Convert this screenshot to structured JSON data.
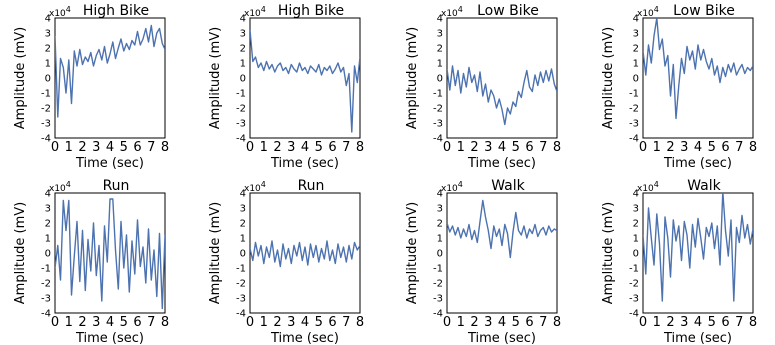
{
  "chart_data": [
    {
      "type": "line",
      "title": "High Bike",
      "xlabel": "Time (sec)",
      "ylabel": "Amplitude (mV)",
      "scale_label": "x10",
      "scale_exp": "4",
      "xlim": [
        0,
        8
      ],
      "ylim": [
        -4,
        4
      ],
      "xticks": [
        0,
        1,
        2,
        3,
        4,
        5,
        6,
        7,
        8
      ],
      "yticks": [
        4,
        3,
        2,
        1,
        0,
        -1,
        -2,
        -3,
        -4
      ],
      "color": "#4c72b0",
      "series": [
        {
          "x": [
            0,
            0.2,
            0.4,
            0.6,
            0.8,
            1.0,
            1.2,
            1.4,
            1.6,
            1.8,
            2.0,
            2.2,
            2.4,
            2.6,
            2.8,
            3.0,
            3.2,
            3.4,
            3.6,
            3.8,
            4.0,
            4.2,
            4.4,
            4.6,
            4.8,
            5.0,
            5.2,
            5.4,
            5.6,
            5.8,
            6.0,
            6.2,
            6.4,
            6.6,
            6.8,
            7.0,
            7.2,
            7.4,
            7.6,
            7.8,
            8.0
          ],
          "y": [
            2.8,
            -2.6,
            1.3,
            0.7,
            -1.0,
            1.2,
            -1.7,
            1.8,
            0.8,
            1.9,
            0.9,
            1.4,
            1.1,
            1.7,
            0.8,
            1.5,
            1.9,
            1.2,
            2.1,
            1.0,
            1.6,
            2.4,
            1.3,
            2.0,
            2.6,
            1.8,
            2.3,
            1.9,
            2.5,
            2.2,
            3.1,
            2.2,
            2.6,
            3.3,
            2.4,
            3.5,
            2.1,
            3.0,
            3.3,
            2.3,
            1.9
          ]
        }
      ]
    },
    {
      "type": "line",
      "title": "High Bike",
      "xlabel": "Time (sec)",
      "ylabel": "Amplitude (mV)",
      "scale_label": "x10",
      "scale_exp": "4",
      "xlim": [
        0,
        8
      ],
      "ylim": [
        -4,
        4
      ],
      "xticks": [
        0,
        1,
        2,
        3,
        4,
        5,
        6,
        7,
        8
      ],
      "yticks": [
        4,
        3,
        2,
        1,
        0,
        -1,
        -2,
        -3,
        -4
      ],
      "color": "#4c72b0",
      "series": [
        {
          "x": [
            0,
            0.2,
            0.4,
            0.6,
            0.8,
            1.0,
            1.2,
            1.4,
            1.6,
            1.8,
            2.0,
            2.2,
            2.4,
            2.6,
            2.8,
            3.0,
            3.2,
            3.4,
            3.6,
            3.8,
            4.0,
            4.2,
            4.4,
            4.6,
            4.8,
            5.0,
            5.2,
            5.4,
            5.6,
            5.8,
            6.0,
            6.2,
            6.4,
            6.6,
            6.8,
            7.0,
            7.2,
            7.4,
            7.6,
            7.8,
            8.0
          ],
          "y": [
            3.2,
            1.1,
            1.4,
            0.7,
            1.0,
            0.5,
            1.1,
            0.6,
            0.9,
            0.4,
            0.8,
            1.0,
            0.5,
            0.7,
            0.3,
            0.9,
            0.6,
            0.4,
            1.0,
            0.5,
            0.7,
            0.3,
            0.8,
            0.6,
            0.4,
            0.9,
            0.2,
            0.7,
            0.5,
            0.8,
            0.3,
            0.6,
            1.0,
            0.4,
            0.7,
            -0.5,
            0.3,
            -3.6,
            0.8,
            -0.3,
            1.4
          ]
        }
      ]
    },
    {
      "type": "line",
      "title": "Low Bike",
      "xlabel": "Time (sec)",
      "ylabel": "Amplitude (mV)",
      "scale_label": "x10",
      "scale_exp": "4",
      "xlim": [
        0,
        8
      ],
      "ylim": [
        -4,
        4
      ],
      "xticks": [
        0,
        1,
        2,
        3,
        4,
        5,
        6,
        7,
        8
      ],
      "yticks": [
        4,
        3,
        2,
        1,
        0,
        -1,
        -2,
        -3,
        -4
      ],
      "color": "#4c72b0",
      "series": [
        {
          "x": [
            0,
            0.2,
            0.4,
            0.6,
            0.8,
            1.0,
            1.2,
            1.4,
            1.6,
            1.8,
            2.0,
            2.2,
            2.4,
            2.6,
            2.8,
            3.0,
            3.2,
            3.4,
            3.6,
            3.8,
            4.0,
            4.2,
            4.4,
            4.6,
            4.8,
            5.0,
            5.2,
            5.4,
            5.6,
            5.8,
            6.0,
            6.2,
            6.4,
            6.6,
            6.8,
            7.0,
            7.2,
            7.4,
            7.6,
            7.8,
            8.0
          ],
          "y": [
            0.6,
            -0.8,
            0.8,
            -0.5,
            0.5,
            -1.0,
            0.3,
            -0.6,
            0.7,
            -0.3,
            0.2,
            -0.9,
            0.4,
            -1.2,
            -0.4,
            -1.6,
            -0.8,
            -1.2,
            -2.0,
            -1.4,
            -2.1,
            -3.1,
            -2.0,
            -2.4,
            -1.6,
            -1.9,
            -0.9,
            -1.3,
            -0.3,
            0.5,
            -0.6,
            -0.9,
            0.2,
            -0.5,
            0.4,
            -0.3,
            0.5,
            -0.2,
            0.6,
            -0.4,
            -0.9
          ]
        }
      ]
    },
    {
      "type": "line",
      "title": "Low Bike",
      "xlabel": "Time (sec)",
      "ylabel": "Amplitude (mV)",
      "scale_label": "x10",
      "scale_exp": "4",
      "xlim": [
        0,
        8
      ],
      "ylim": [
        -4,
        4
      ],
      "xticks": [
        0,
        1,
        2,
        3,
        4,
        5,
        6,
        7,
        8
      ],
      "yticks": [
        4,
        3,
        2,
        1,
        0,
        -1,
        -2,
        -3,
        -4
      ],
      "color": "#4c72b0",
      "series": [
        {
          "x": [
            0,
            0.2,
            0.4,
            0.6,
            0.8,
            1.0,
            1.2,
            1.4,
            1.6,
            1.8,
            2.0,
            2.2,
            2.4,
            2.6,
            2.8,
            3.0,
            3.2,
            3.4,
            3.6,
            3.8,
            4.0,
            4.2,
            4.4,
            4.6,
            4.8,
            5.0,
            5.2,
            5.4,
            5.6,
            5.8,
            6.0,
            6.2,
            6.4,
            6.6,
            6.8,
            7.0,
            7.2,
            7.4,
            7.6,
            7.8,
            8.0
          ],
          "y": [
            1.8,
            0.2,
            2.2,
            1.0,
            2.8,
            4.0,
            1.9,
            2.6,
            0.8,
            1.5,
            -1.2,
            0.9,
            -2.7,
            -0.5,
            1.3,
            0.3,
            2.1,
            1.2,
            1.8,
            0.6,
            2.2,
            1.2,
            1.9,
            1.1,
            0.6,
            1.3,
            0.2,
            0.8,
            -0.3,
            0.7,
            0.1,
            0.9,
            0.4,
            1.0,
            0.2,
            0.6,
            0.9,
            0.3,
            0.7,
            0.5,
            0.8
          ]
        }
      ]
    },
    {
      "type": "line",
      "title": "Run",
      "xlabel": "Time (sec)",
      "ylabel": "Amplitude (mV)",
      "scale_label": "x10",
      "scale_exp": "4",
      "xlim": [
        0,
        8
      ],
      "ylim": [
        -4,
        4
      ],
      "xticks": [
        0,
        1,
        2,
        3,
        4,
        5,
        6,
        7,
        8
      ],
      "yticks": [
        4,
        3,
        2,
        1,
        0,
        -1,
        -2,
        -3,
        -4
      ],
      "color": "#4c72b0",
      "series": [
        {
          "x": [
            0,
            0.2,
            0.4,
            0.6,
            0.8,
            1.0,
            1.2,
            1.4,
            1.6,
            1.8,
            2.0,
            2.2,
            2.4,
            2.6,
            2.8,
            3.0,
            3.2,
            3.4,
            3.6,
            3.8,
            4.0,
            4.2,
            4.4,
            4.6,
            4.8,
            5.0,
            5.2,
            5.4,
            5.6,
            5.8,
            6.0,
            6.2,
            6.4,
            6.6,
            6.8,
            7.0,
            7.2,
            7.4,
            7.6,
            7.8,
            8.0
          ],
          "y": [
            -1.0,
            0.5,
            -1.8,
            3.5,
            1.5,
            3.5,
            -2.8,
            -0.2,
            2.1,
            -1.9,
            1.5,
            -2.5,
            0.9,
            -1.2,
            2.0,
            -1.5,
            0.5,
            -3.2,
            1.8,
            -0.6,
            3.6,
            3.6,
            0.2,
            -2.4,
            2.1,
            -1.0,
            1.2,
            -2.6,
            0.8,
            -1.4,
            2.2,
            -0.9,
            0.4,
            -2.0,
            1.6,
            -1.8,
            0.2,
            -2.9,
            1.3,
            -3.7,
            1.2
          ]
        }
      ]
    },
    {
      "type": "line",
      "title": "Run",
      "xlabel": "Time (sec)",
      "ylabel": "Amplitude (mV)",
      "scale_label": "x10",
      "scale_exp": "4",
      "xlim": [
        0,
        8
      ],
      "ylim": [
        -4,
        4
      ],
      "xticks": [
        0,
        1,
        2,
        3,
        4,
        5,
        6,
        7,
        8
      ],
      "yticks": [
        4,
        3,
        2,
        1,
        0,
        -1,
        -2,
        -3,
        -4
      ],
      "color": "#4c72b0",
      "series": [
        {
          "x": [
            0,
            0.2,
            0.4,
            0.6,
            0.8,
            1.0,
            1.2,
            1.4,
            1.6,
            1.8,
            2.0,
            2.2,
            2.4,
            2.6,
            2.8,
            3.0,
            3.2,
            3.4,
            3.6,
            3.8,
            4.0,
            4.2,
            4.4,
            4.6,
            4.8,
            5.0,
            5.2,
            5.4,
            5.6,
            5.8,
            6.0,
            6.2,
            6.4,
            6.6,
            6.8,
            7.0,
            7.2,
            7.4,
            7.6,
            7.8,
            8.0
          ],
          "y": [
            0.3,
            -0.5,
            0.7,
            -0.2,
            0.5,
            -0.7,
            0.4,
            -0.3,
            0.8,
            -0.6,
            0.2,
            -0.9,
            0.6,
            -0.4,
            0.3,
            -0.7,
            0.5,
            -0.2,
            0.7,
            -0.5,
            0.4,
            -0.8,
            0.6,
            -0.3,
            0.5,
            -0.6,
            0.3,
            -0.4,
            0.8,
            -0.5,
            0.2,
            -0.7,
            0.6,
            -0.3,
            0.4,
            -0.6,
            0.5,
            -0.4,
            0.7,
            0.2,
            0.5
          ]
        }
      ]
    },
    {
      "type": "line",
      "title": "Walk",
      "xlabel": "Time (sec)",
      "ylabel": "Amplitude (mV)",
      "scale_label": "x10",
      "scale_exp": "4",
      "xlim": [
        0,
        8
      ],
      "ylim": [
        -4,
        4
      ],
      "xticks": [
        0,
        1,
        2,
        3,
        4,
        5,
        6,
        7,
        8
      ],
      "yticks": [
        4,
        3,
        2,
        1,
        0,
        -1,
        -2,
        -3,
        -4
      ],
      "color": "#4c72b0",
      "series": [
        {
          "x": [
            0,
            0.2,
            0.4,
            0.6,
            0.8,
            1.0,
            1.2,
            1.4,
            1.6,
            1.8,
            2.0,
            2.2,
            2.4,
            2.6,
            2.8,
            3.0,
            3.2,
            3.4,
            3.6,
            3.8,
            4.0,
            4.2,
            4.4,
            4.6,
            4.8,
            5.0,
            5.2,
            5.4,
            5.6,
            5.8,
            6.0,
            6.2,
            6.4,
            6.6,
            6.8,
            7.0,
            7.2,
            7.4,
            7.6,
            7.8,
            8.0
          ],
          "y": [
            2.0,
            1.4,
            1.8,
            1.2,
            1.7,
            1.0,
            1.6,
            1.1,
            1.9,
            0.9,
            1.5,
            0.7,
            2.1,
            3.5,
            2.4,
            1.5,
            0.3,
            1.8,
            1.1,
            1.6,
            0.5,
            1.9,
            1.3,
            -0.3,
            1.4,
            2.7,
            1.5,
            1.2,
            1.8,
            1.0,
            1.6,
            1.3,
            1.9,
            1.1,
            1.5,
            1.7,
            1.2,
            1.8,
            1.4,
            1.6,
            1.5
          ]
        }
      ]
    },
    {
      "type": "line",
      "title": "Walk",
      "xlabel": "Time (sec)",
      "ylabel": "Amplitude (mV)",
      "scale_label": "x10",
      "scale_exp": "4",
      "xlim": [
        0,
        8
      ],
      "ylim": [
        -4,
        4
      ],
      "xticks": [
        0,
        1,
        2,
        3,
        4,
        5,
        6,
        7,
        8
      ],
      "yticks": [
        4,
        3,
        2,
        1,
        0,
        -1,
        -2,
        -3,
        -4
      ],
      "color": "#4c72b0",
      "series": [
        {
          "x": [
            0,
            0.2,
            0.4,
            0.6,
            0.8,
            1.0,
            1.2,
            1.4,
            1.6,
            1.8,
            2.0,
            2.2,
            2.4,
            2.6,
            2.8,
            3.0,
            3.2,
            3.4,
            3.6,
            3.8,
            4.0,
            4.2,
            4.4,
            4.6,
            4.8,
            5.0,
            5.2,
            5.4,
            5.6,
            5.8,
            6.0,
            6.2,
            6.4,
            6.6,
            6.8,
            7.0,
            7.2,
            7.4,
            7.6,
            7.8,
            8.0
          ],
          "y": [
            1.2,
            -1.4,
            3.0,
            1.0,
            -0.8,
            2.6,
            0.6,
            -3.2,
            2.4,
            1.0,
            -1.6,
            2.2,
            0.8,
            1.8,
            -0.5,
            2.1,
            1.2,
            -1.0,
            1.9,
            0.4,
            2.3,
            1.0,
            -0.4,
            1.7,
            1.1,
            2.0,
            0.3,
            1.8,
            -0.8,
            4.1,
            1.5,
            -0.2,
            2.2,
            -3.2,
            1.7,
            0.7,
            2.5,
            1.0,
            1.9,
            0.6,
            1.6
          ]
        }
      ]
    }
  ]
}
